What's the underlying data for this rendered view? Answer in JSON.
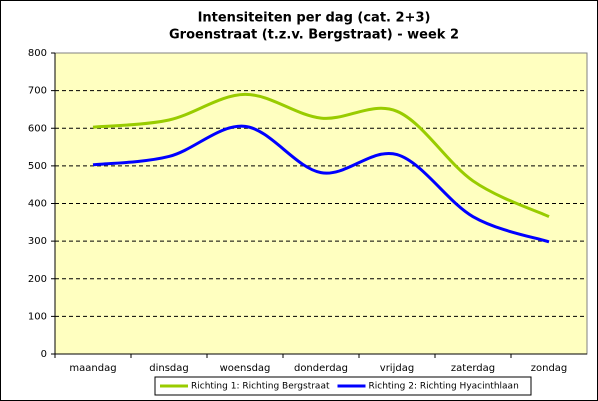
{
  "chart_data": {
    "type": "line",
    "title": "Intensiteiten per dag (cat. 2+3)",
    "subtitle": "Groenstraat (t.z.v. Bergstraat) - week 2",
    "categories": [
      "maandag",
      "dinsdag",
      "woensdag",
      "donderdag",
      "vrijdag",
      "zaterdag",
      "zondag"
    ],
    "series": [
      {
        "name": "Richting 1: Richting Bergstraat",
        "color": "#99cc00",
        "values": [
          603,
          622,
          690,
          627,
          645,
          460,
          365
        ]
      },
      {
        "name": "Richting 2: Richting Hyacinthlaan",
        "color": "#0000ff",
        "values": [
          503,
          525,
          605,
          482,
          530,
          365,
          298
        ]
      }
    ],
    "ylim": [
      0,
      800
    ],
    "yticks": [
      0,
      100,
      200,
      300,
      400,
      500,
      600,
      700,
      800
    ],
    "grid": true,
    "smooth": true,
    "legend": "bottom"
  }
}
